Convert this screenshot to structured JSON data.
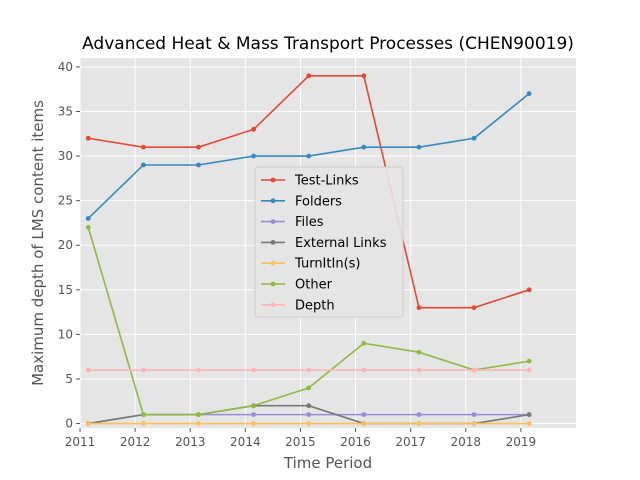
{
  "chart_data": {
    "type": "line",
    "title": "Advanced Heat & Mass Transport Processes (CHEN90019)",
    "xlabel": "Time Period",
    "ylabel": "Maximum depth of LMS content items",
    "xlim": [
      2011,
      2020
    ],
    "ylim": [
      -0.5,
      41
    ],
    "x_ticks": [
      "2011",
      "2012",
      "2013",
      "2014",
      "2015",
      "2016",
      "2017",
      "2018",
      "2019"
    ],
    "y_ticks": [
      "0",
      "5",
      "10",
      "15",
      "20",
      "25",
      "30",
      "35",
      "40"
    ],
    "grid": true,
    "legend_position": "center",
    "x": [
      2011.15,
      2012.15,
      2013.15,
      2014.15,
      2015.15,
      2016.15,
      2017.15,
      2018.15,
      2019.15
    ],
    "series": [
      {
        "name": "Test-Links",
        "color": "#e24a33",
        "values": [
          32,
          31,
          31,
          33,
          39,
          39,
          13,
          13,
          15
        ]
      },
      {
        "name": "Folders",
        "color": "#348abd",
        "values": [
          23,
          29,
          29,
          30,
          30,
          31,
          31,
          32,
          37
        ]
      },
      {
        "name": "Files",
        "color": "#988ed5",
        "values": [
          0,
          1,
          1,
          1,
          1,
          1,
          1,
          1,
          1
        ]
      },
      {
        "name": "External Links",
        "color": "#777777",
        "values": [
          0,
          1,
          1,
          2,
          2,
          0,
          0,
          0,
          1
        ]
      },
      {
        "name": "TurnItIn(s)",
        "color": "#fbc15e",
        "values": [
          0,
          0,
          0,
          0,
          0,
          0,
          0,
          0,
          0
        ]
      },
      {
        "name": "Other",
        "color": "#8eba42",
        "values": [
          22,
          1,
          1,
          2,
          4,
          9,
          8,
          6,
          7
        ]
      },
      {
        "name": "Depth",
        "color": "#ffb5b8",
        "values": [
          6,
          6,
          6,
          6,
          6,
          6,
          6,
          6,
          6
        ]
      }
    ]
  }
}
